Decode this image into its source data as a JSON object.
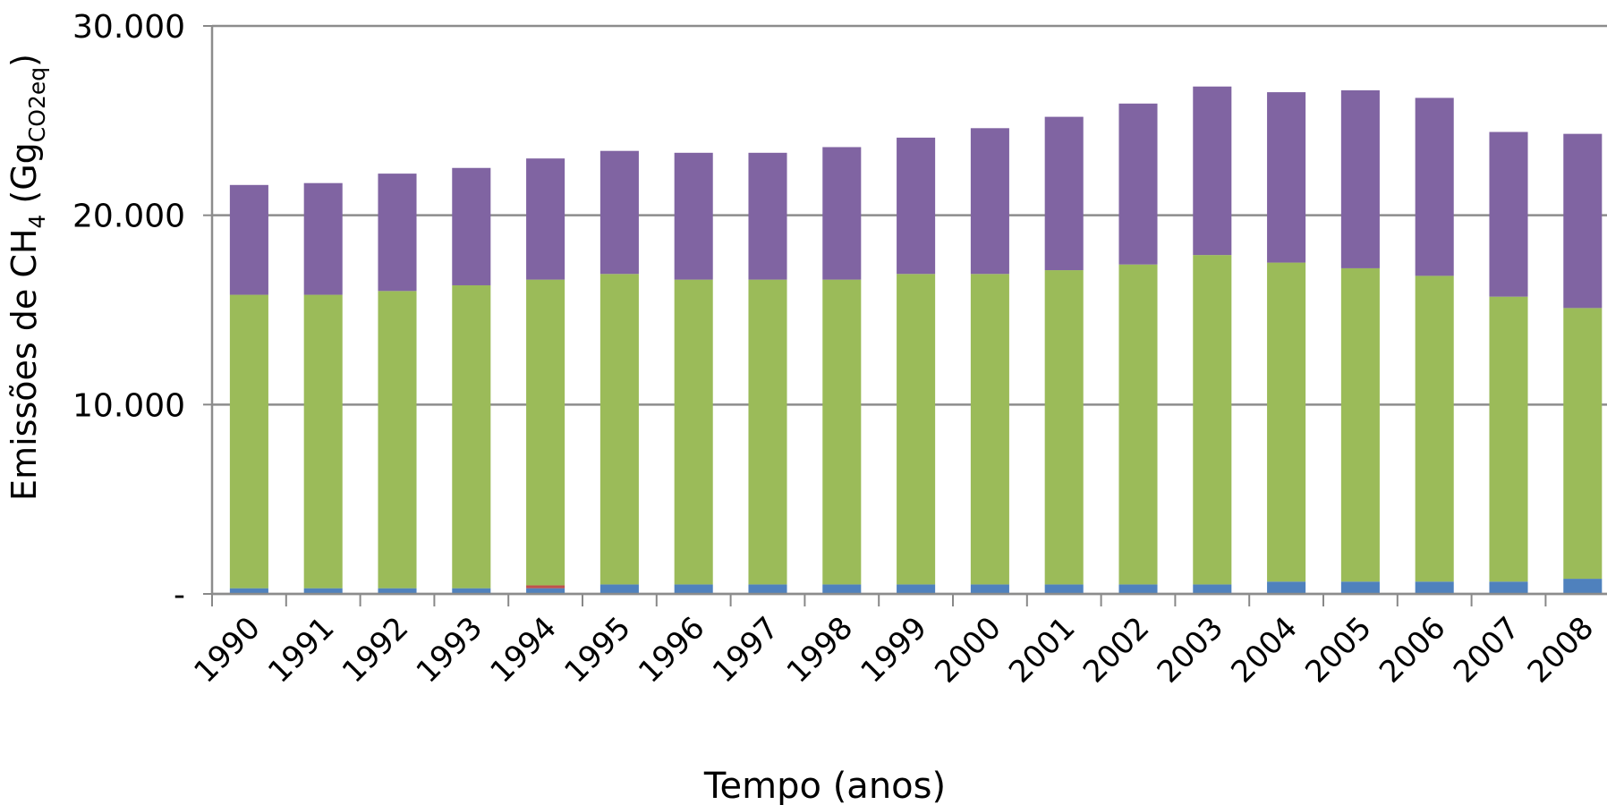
{
  "chart_data": {
    "type": "stacked_bar",
    "y_label": {
      "parts": [
        "Emissões  de CH",
        "4",
        " (Gg",
        "CO2eq",
        ")"
      ]
    },
    "x_label": "Tempo (anos)",
    "categories": [
      "1990",
      "1991",
      "1992",
      "1993",
      "1994",
      "1995",
      "1996",
      "1997",
      "1998",
      "1999",
      "2000",
      "2001",
      "2002",
      "2003",
      "2004",
      "2005",
      "2006",
      "2007",
      "2008"
    ],
    "series": [
      {
        "color": "#4f81bd",
        "values": [
          300,
          300,
          300,
          300,
          300,
          500,
          500,
          500,
          500,
          500,
          500,
          500,
          500,
          500,
          650,
          650,
          650,
          650,
          800
        ]
      },
      {
        "color": "#c0504d",
        "values": [
          0,
          0,
          0,
          0,
          150,
          0,
          0,
          0,
          0,
          0,
          0,
          0,
          0,
          0,
          0,
          0,
          0,
          0,
          0
        ]
      },
      {
        "color": "#9bbb59",
        "values": [
          15500,
          15500,
          15700,
          16000,
          16150,
          16400,
          16100,
          16100,
          16100,
          16400,
          16400,
          16600,
          16900,
          17400,
          16850,
          16550,
          16150,
          15050,
          14300
        ]
      },
      {
        "color": "#8064a2",
        "values": [
          5800,
          5900,
          6200,
          6200,
          6400,
          6500,
          6700,
          6700,
          7000,
          7200,
          7700,
          8100,
          8500,
          8900,
          9000,
          9400,
          9400,
          8700,
          9200
        ]
      }
    ],
    "ylim": [
      0,
      30000
    ],
    "yticks": [
      {
        "value": 0,
        "label": "-"
      },
      {
        "value": 10000,
        "label": "10.000"
      },
      {
        "value": 20000,
        "label": "20.000"
      },
      {
        "value": 30000,
        "label": "30.000"
      }
    ],
    "grid": true
  }
}
